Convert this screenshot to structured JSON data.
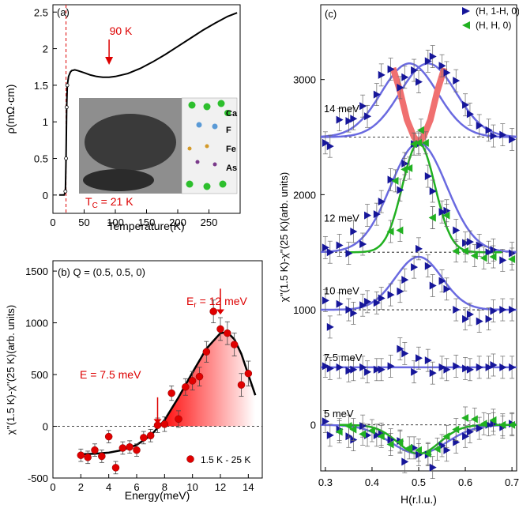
{
  "chart_data": [
    {
      "panel": "(a)",
      "type": "line",
      "xlabel": "Temperature(K)",
      "ylabel": "ρ(mΩ·cm)",
      "xlim": [
        0,
        300
      ],
      "ylim": [
        -0.25,
        2.6
      ],
      "xticks": [
        0,
        50,
        100,
        150,
        200,
        250
      ],
      "yticks": [
        0,
        0.5,
        1,
        1.5,
        2,
        2.5
      ],
      "ytick_labels": [
        "0",
        "0.5",
        "1",
        "1.5",
        "2",
        "2.5"
      ],
      "annotations": {
        "peak_label": "90 K",
        "tc_label": "T_C = 21 K",
        "tc_value": 21,
        "peak_x": 90
      },
      "inset_legend": [
        "Ca",
        "F",
        "Fe",
        "As"
      ],
      "series": [
        {
          "x": [
            10,
            18,
            20,
            21,
            22,
            23,
            25,
            28,
            30,
            35,
            40,
            50,
            60,
            70,
            80,
            90,
            100,
            120,
            140,
            160,
            180,
            200,
            220,
            240,
            260,
            280,
            295
          ],
          "y": [
            0,
            0,
            0.05,
            0.5,
            1.2,
            1.5,
            1.62,
            1.68,
            1.7,
            1.71,
            1.7,
            1.67,
            1.64,
            1.62,
            1.61,
            1.61,
            1.62,
            1.66,
            1.73,
            1.82,
            1.92,
            2.03,
            2.14,
            2.25,
            2.35,
            2.44,
            2.49
          ]
        }
      ]
    },
    {
      "panel": "(b)",
      "type": "scatter",
      "title": "Q = (0.5, 0.5, 0)",
      "xlabel": "Energy(meV)",
      "ylabel": "χ''(1.5 K)-χ''(25 K)(arb. units)",
      "xlim": [
        0,
        15
      ],
      "ylim": [
        -500,
        1600
      ],
      "xticks": [
        0,
        2,
        4,
        6,
        8,
        10,
        12,
        14
      ],
      "yticks": [
        -500,
        0,
        500,
        1000,
        1500
      ],
      "legend": "1.5 K - 25 K",
      "annotations": {
        "e_label": "E = 7.5 meV",
        "e_value": 7.5,
        "er_label": "E",
        "er_sub": "r",
        "er_rest": " = 12 meV",
        "er_value": 12
      },
      "points": {
        "x": [
          2,
          2.5,
          3,
          3.5,
          4,
          4.5,
          5,
          5.5,
          6,
          6.5,
          7,
          7.5,
          8,
          8.5,
          9,
          9.5,
          10,
          10.5,
          11,
          11.5,
          12,
          12.5,
          13,
          13.5,
          14
        ],
        "y": [
          -280,
          -300,
          -230,
          -290,
          -100,
          -400,
          -210,
          -200,
          -230,
          -110,
          -90,
          10,
          20,
          320,
          70,
          380,
          440,
          480,
          720,
          1110,
          940,
          900,
          790,
          400,
          510
        ],
        "err": [
          60,
          60,
          60,
          60,
          60,
          60,
          60,
          60,
          60,
          60,
          60,
          70,
          70,
          70,
          80,
          80,
          90,
          90,
          100,
          110,
          110,
          110,
          110,
          110,
          120
        ]
      },
      "fit": {
        "x": [
          2,
          3,
          4,
          5,
          6,
          7,
          8,
          9,
          10,
          11,
          12,
          12.5,
          13,
          13.5,
          14,
          14.5
        ],
        "y": [
          -270,
          -265,
          -255,
          -230,
          -180,
          -90,
          60,
          280,
          520,
          750,
          900,
          910,
          840,
          700,
          500,
          300
        ]
      }
    },
    {
      "panel": "(c)",
      "type": "scatter",
      "xlabel": "H(r.l.u.)",
      "ylabel": "χ''(1.5 K)-χ''(25 K)(arb. units)",
      "xlim": [
        0.29,
        0.71
      ],
      "ylim": [
        -400,
        3650
      ],
      "xticks": [
        0.3,
        0.4,
        0.5,
        0.6,
        0.7
      ],
      "yticks": [
        0,
        1000,
        2000,
        3000
      ],
      "legend": [
        "(H, 1-H, 0)",
        "(H, H, 0)"
      ],
      "energy_labels": [
        {
          "text": "14 meV",
          "y": 2750
        },
        {
          "text": "12 meV",
          "y": 1800
        },
        {
          "text": "10 meV",
          "y": 1170
        },
        {
          "text": "7.5 meV",
          "y": 590
        },
        {
          "text": "5 meV",
          "y": 100
        }
      ],
      "baselines": [
        2500,
        1500,
        1000,
        500,
        0
      ],
      "series": [
        {
          "name": "(H, 1-H, 0)",
          "color": "#16169a",
          "marker": "triangle-right",
          "x": [
            0.3,
            0.31,
            0.33,
            0.35,
            0.36,
            0.38,
            0.39,
            0.41,
            0.42,
            0.44,
            0.46,
            0.47,
            0.49,
            0.5,
            0.52,
            0.53,
            0.55,
            0.56,
            0.58,
            0.6,
            0.61,
            0.63,
            0.65,
            0.66,
            0.68,
            0.7
          ],
          "y": [
            2450,
            2420,
            2650,
            2640,
            2660,
            2770,
            2680,
            2870,
            3040,
            3090,
            2930,
            3020,
            3080,
            2980,
            3160,
            3200,
            3120,
            3060,
            2990,
            2780,
            2700,
            2600,
            2560,
            2510,
            2520,
            2480
          ]
        },
        {
          "name": "12 meV",
          "color": "#16169a",
          "marker": "triangle-right",
          "x": [
            0.3,
            0.31,
            0.33,
            0.35,
            0.36,
            0.38,
            0.39,
            0.41,
            0.42,
            0.44,
            0.46,
            0.47,
            0.49,
            0.5,
            0.52,
            0.53,
            0.55,
            0.56,
            0.58,
            0.6,
            0.61,
            0.63,
            0.65,
            0.66,
            0.68,
            0.7
          ],
          "y": [
            1540,
            1500,
            1560,
            1490,
            1680,
            1570,
            1820,
            1830,
            1940,
            2130,
            2040,
            2270,
            2440,
            2440,
            2160,
            2030,
            1850,
            1860,
            1690,
            1580,
            1590,
            1560,
            1500,
            1520,
            1430,
            1490
          ]
        },
        {
          "name": "10 meV",
          "color": "#16169a",
          "marker": "triangle-right",
          "x": [
            0.3,
            0.31,
            0.33,
            0.35,
            0.36,
            0.38,
            0.39,
            0.41,
            0.42,
            0.44,
            0.46,
            0.47,
            0.49,
            0.5,
            0.52,
            0.53,
            0.55,
            0.56,
            0.58,
            0.6,
            0.61,
            0.63,
            0.65,
            0.66,
            0.68,
            0.7
          ],
          "y": [
            1080,
            850,
            1050,
            1000,
            970,
            1040,
            1070,
            1060,
            1100,
            1130,
            1160,
            1260,
            1370,
            1530,
            1380,
            1210,
            1250,
            1180,
            1000,
            920,
            960,
            900,
            920,
            990,
            1000,
            1000
          ]
        },
        {
          "name": "7.5 meV",
          "color": "#16169a",
          "marker": "triangle-right",
          "x": [
            0.3,
            0.31,
            0.33,
            0.35,
            0.36,
            0.38,
            0.39,
            0.41,
            0.42,
            0.44,
            0.46,
            0.47,
            0.49,
            0.5,
            0.52,
            0.53,
            0.55,
            0.56,
            0.58,
            0.6,
            0.61,
            0.63,
            0.65,
            0.66,
            0.68,
            0.7
          ],
          "y": [
            510,
            490,
            500,
            470,
            480,
            500,
            460,
            480,
            480,
            510,
            660,
            620,
            460,
            580,
            560,
            450,
            500,
            480,
            510,
            490,
            480,
            500,
            500,
            520,
            500,
            500
          ]
        },
        {
          "name": "5 meV",
          "color": "#16169a",
          "marker": "triangle-right",
          "x": [
            0.3,
            0.31,
            0.33,
            0.35,
            0.36,
            0.38,
            0.39,
            0.41,
            0.42,
            0.44,
            0.46,
            0.47,
            0.49,
            0.5,
            0.52,
            0.53,
            0.55,
            0.56,
            0.58,
            0.6,
            0.61,
            0.63,
            0.65,
            0.66,
            0.68,
            0.7
          ],
          "y": [
            30,
            -90,
            -40,
            -100,
            -130,
            -10,
            -90,
            -90,
            -80,
            -130,
            -140,
            -320,
            -200,
            -260,
            -260,
            -370,
            -180,
            -220,
            -150,
            -100,
            -60,
            -30,
            0,
            10,
            -20,
            10
          ]
        },
        {
          "name": "(H, H, 0)",
          "color": "#21b121",
          "marker": "triangle-left",
          "x": [
            0.45,
            0.47,
            0.49,
            0.505,
            0.515,
            0.53
          ],
          "y": [
            2120,
            2220,
            2440,
            2560,
            2450,
            1800
          ]
        },
        {
          "name": "12 meV green",
          "color": "#21b121",
          "marker": "triangle-left",
          "x": [
            0.44,
            0.46,
            0.48,
            0.5,
            0.53,
            0.56,
            0.58,
            0.6,
            0.62,
            0.64,
            0.66,
            0.7
          ],
          "y": [
            1680,
            1690,
            2230,
            2450,
            1800,
            1820,
            1510,
            1510,
            1470,
            1450,
            1460,
            1440
          ]
        },
        {
          "name": "5 meV green",
          "color": "#21b121",
          "marker": "triangle-left",
          "x": [
            0.33,
            0.35,
            0.36,
            0.38,
            0.4,
            0.42,
            0.44,
            0.46,
            0.48,
            0.5,
            0.52,
            0.54,
            0.56,
            0.58,
            0.6,
            0.62,
            0.64,
            0.66,
            0.68,
            0.7
          ],
          "y": [
            -60,
            -10,
            -40,
            -80,
            -50,
            -100,
            -170,
            -150,
            -200,
            -220,
            -250,
            -210,
            -100,
            -40,
            60,
            50,
            10,
            40,
            0,
            0
          ]
        }
      ]
    }
  ]
}
